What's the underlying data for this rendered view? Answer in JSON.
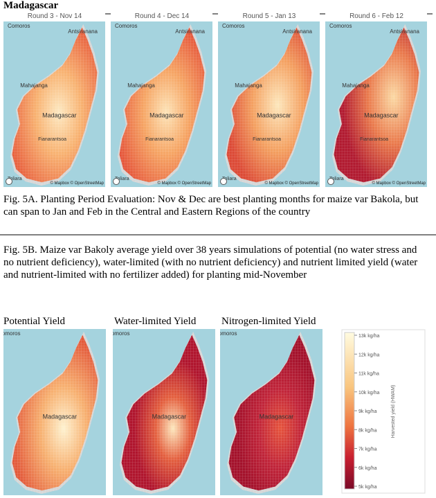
{
  "header": {
    "title": "Madagascar"
  },
  "fig5a": {
    "panels": [
      {
        "label": "Round 3 - Nov 14"
      },
      {
        "label": "Round 4 - Dec 14"
      },
      {
        "label": "Round 5 - Jan 13"
      },
      {
        "label": "Round 6 - Feb 12"
      }
    ],
    "map_labels": {
      "comoros": "Comoros",
      "north": "Antsiranana",
      "west": "Mahajanga",
      "country": "Madagascar",
      "center": "Fianarantsoa",
      "south": "Toliara"
    },
    "attribution": "© Mapbox © OpenStreetMap",
    "caption": "Fig. 5A. Planting Period Evaluation: Nov & Dec are best planting months for maize var Bakola, but can span to Jan and Feb in the Central and Eastern Regions of the country"
  },
  "fig5b": {
    "caption": "Fig. 5B. Maize var Bakoly average yield over 38 years simulations of potential (no water stress and no nutrient deficiency), water-limited (with no nutrient deficiency) and nutrient limited yield (water and nutrient-limited with no fertilizer added) for planting mid-November",
    "panels": [
      {
        "label": "Potential Yield"
      },
      {
        "label": "Water-limited Yield"
      },
      {
        "label": "Nitrogen-limited Yield"
      }
    ],
    "legend": {
      "title": "Harvested yield (HWAM)",
      "ticks": [
        "13k kg/ha",
        "12k kg/ha",
        "11k kg/ha",
        "10k kg/ha",
        "9k kg/ha",
        "8k kg/ha",
        "7k kg/ha",
        "6k kg/ha",
        "5k kg/ha"
      ]
    }
  }
}
